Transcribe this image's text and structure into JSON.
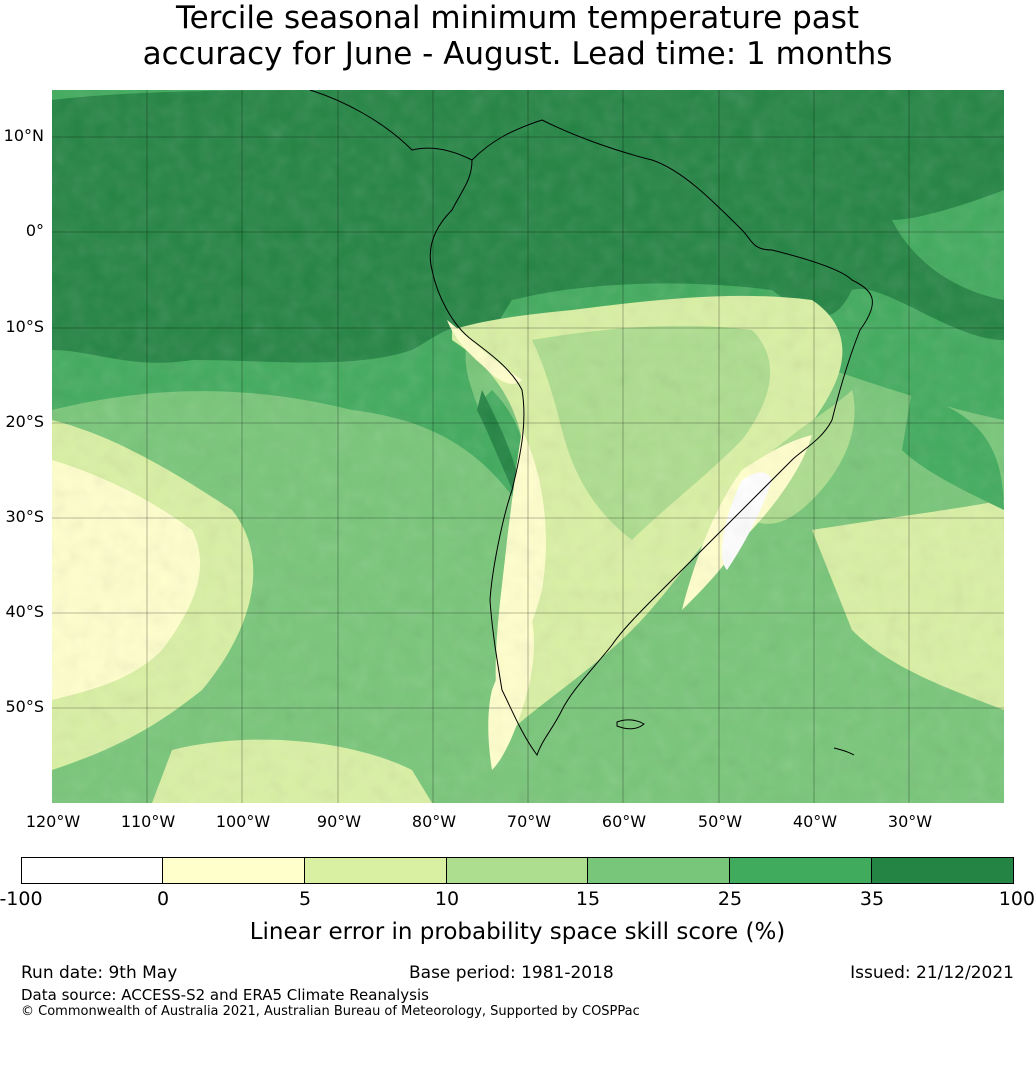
{
  "title": {
    "line1": "Tercile seasonal minimum temperature past",
    "line2": "accuracy for June - August. Lead time: 1 months"
  },
  "map": {
    "region": "South America",
    "lat_labels": [
      "10°N",
      "0°",
      "10°S",
      "20°S",
      "30°S",
      "40°S",
      "50°S"
    ],
    "lon_labels": [
      "120°W",
      "110°W",
      "100°W",
      "90°W",
      "80°W",
      "70°W",
      "60°W",
      "50°W",
      "40°W",
      "30°W"
    ],
    "lat_range": [
      -60,
      15
    ],
    "lon_range": [
      -120,
      -20
    ],
    "grid": true,
    "coastlines": true
  },
  "colorbar": {
    "ticks": [
      "-100",
      "0",
      "5",
      "10",
      "15",
      "25",
      "35",
      "100"
    ],
    "colors": [
      "#ffffff",
      "#ffffcc",
      "#d9f0a3",
      "#addd8e",
      "#78c679",
      "#41ab5d",
      "#238443"
    ],
    "label": "Linear error in probability space skill score (%)"
  },
  "footer": {
    "run_date": "Run date: 9th May",
    "base_period": "Base period: 1981-2018",
    "issued": "Issued: 21/12/2021",
    "data_source": "Data source: ACCESS-S2 and ERA5 Climate Reanalysis",
    "copyright": "© Commonwealth of Australia 2021, Australian Bureau of Meteorology, Supported by COSPPac"
  }
}
